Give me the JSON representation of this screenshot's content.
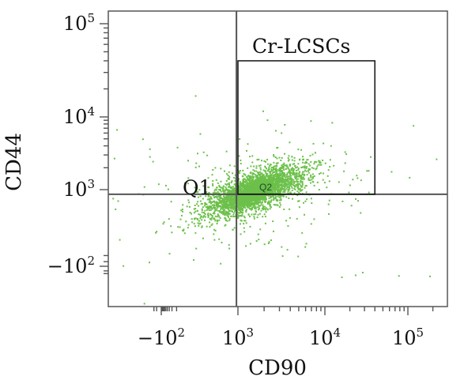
{
  "chart_data": {
    "type": "scatter",
    "title": "",
    "xlabel": "CD90",
    "ylabel": "CD44",
    "x_scale": "biexponential",
    "y_scale": "biexponential",
    "x_ticks": [
      {
        "base": "−",
        "num": "10",
        "exp": "2",
        "value": -100
      },
      {
        "base": "",
        "num": "10",
        "exp": "3",
        "value": 1000
      },
      {
        "base": "",
        "num": "10",
        "exp": "4",
        "value": 10000
      },
      {
        "base": "",
        "num": "10",
        "exp": "5",
        "value": 100000
      }
    ],
    "y_ticks": [
      {
        "base": "",
        "num": "10",
        "exp": "5",
        "value": 100000
      },
      {
        "base": "",
        "num": "10",
        "exp": "4",
        "value": 10000
      },
      {
        "base": "",
        "num": "10",
        "exp": "3",
        "value": 1000
      },
      {
        "base": "−",
        "num": "10",
        "exp": "2",
        "value": -100
      }
    ],
    "quadrant_gate": {
      "x": 800,
      "y": 500
    },
    "gates": [
      {
        "label": "Cr-LCSCs",
        "x_range": [
          1000,
          40000
        ],
        "y_range": [
          500,
          40000
        ]
      }
    ],
    "annotations": [
      "Q1",
      "Q2"
    ],
    "series": [
      {
        "color": "#6cc04a",
        "population_center": [
          1500,
          900
        ],
        "x_range": [
          -300,
          200000
        ],
        "y_range": [
          -200,
          5000
        ]
      }
    ],
    "grid": false,
    "legend": "none"
  }
}
